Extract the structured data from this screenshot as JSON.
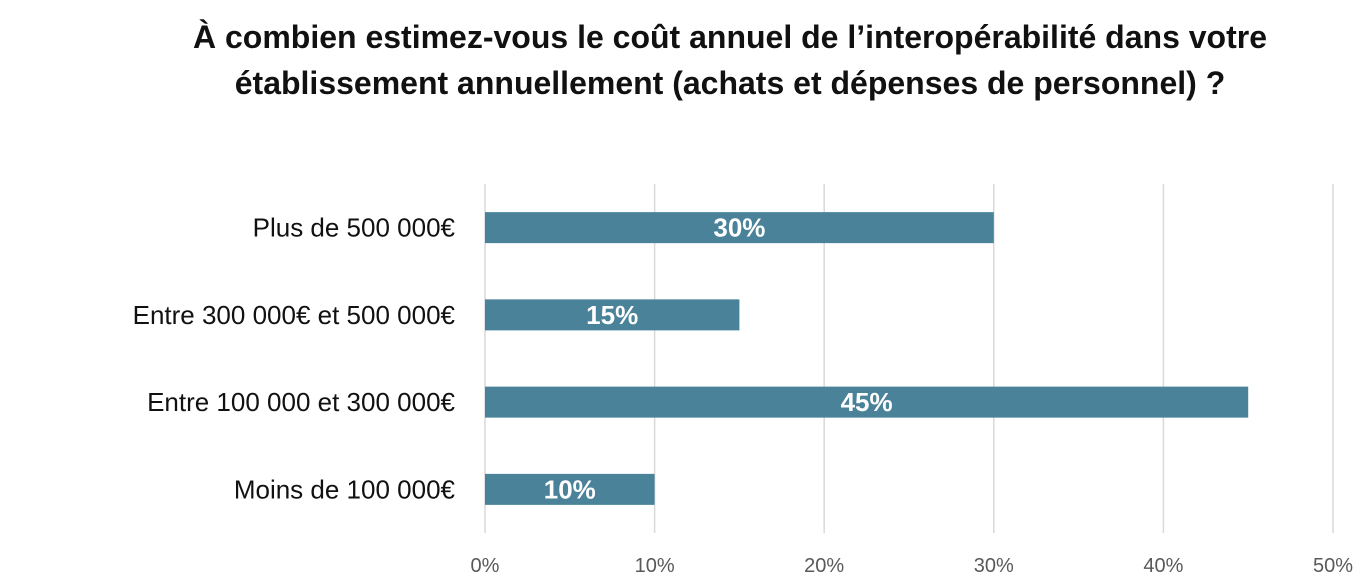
{
  "chart_data": {
    "type": "bar",
    "orientation": "horizontal",
    "title": "À combien estimez-vous le coût annuel de l’interopérabilité dans votre établissement annuellement (achats et dépenses de personnel) ?",
    "categories": [
      "Plus de 500 000€",
      "Entre 300 000€ et 500 000€",
      "Entre 100 000 et 300 000€",
      "Moins de 100 000€"
    ],
    "values": [
      30,
      15,
      45,
      10
    ],
    "data_labels": [
      "30%",
      "15%",
      "45%",
      "10%"
    ],
    "xlim": [
      0,
      50
    ],
    "xticks": [
      0,
      10,
      20,
      30,
      40,
      50
    ],
    "xtick_labels": [
      "0%",
      "10%",
      "20%",
      "30%",
      "40%",
      "50%"
    ],
    "xlabel": "",
    "ylabel": "",
    "grid": "vertical",
    "legend": "none",
    "bar_color": "#4a8299"
  }
}
